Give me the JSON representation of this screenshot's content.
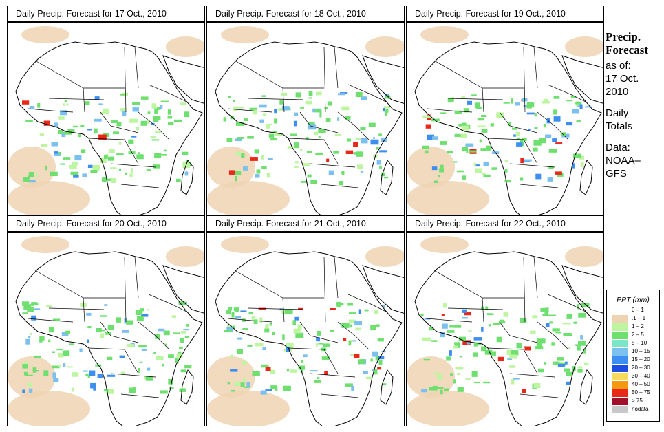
{
  "panels": [
    {
      "title": "Daily Precip. Forecast for  17 Oct., 2010"
    },
    {
      "title": "Daily Precip. Forecast for  18 Oct., 2010"
    },
    {
      "title": "Daily Precip. Forecast for  19 Oct., 2010"
    },
    {
      "title": "Daily Precip. Forecast for  20 Oct., 2010"
    },
    {
      "title": "Daily Precip. Forecast for  21 Oct., 2010"
    },
    {
      "title": "Daily Precip. Forecast for  22 Oct., 2010"
    }
  ],
  "side": {
    "head1": "Precip.",
    "head2": "Forecast",
    "asof": "as of:",
    "date1": "17 Oct.",
    "date2": "2010",
    "daily1": "Daily",
    "daily2": "Totals",
    "data1": "Data:",
    "data2": "NOAA–",
    "data3": "GFS"
  },
  "legend": {
    "title": "PPT (mm)",
    "items": [
      {
        "label": "0 – 1",
        "color": "#ffffff"
      },
      {
        "label": ".1 – 1",
        "color": "#eed3b3"
      },
      {
        "label": "1 – 2",
        "color": "#bdf5a0"
      },
      {
        "label": "2 – 5",
        "color": "#6fe070"
      },
      {
        "label": "5 – 10",
        "color": "#7de6c8"
      },
      {
        "label": "10 – 15",
        "color": "#7cc0f0"
      },
      {
        "label": "15 – 20",
        "color": "#3c8ef0"
      },
      {
        "label": "20 – 30",
        "color": "#1a4de0"
      },
      {
        "label": "30 – 40",
        "color": "#f6da5a"
      },
      {
        "label": "40 – 50",
        "color": "#f59a10"
      },
      {
        "label": "50 – 75",
        "color": "#e82818"
      },
      {
        "label": "> 75",
        "color": "#a0102a"
      },
      {
        "label": "nodata",
        "color": "#c8c8c8"
      }
    ]
  }
}
